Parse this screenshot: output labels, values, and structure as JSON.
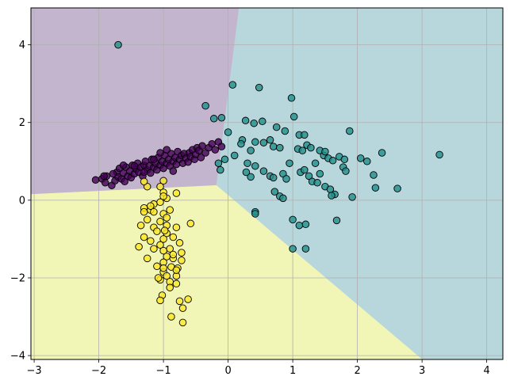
{
  "chart_data": {
    "type": "scatter",
    "title": "",
    "xlabel": "",
    "ylabel": "",
    "xlim": [
      -3.05,
      4.25
    ],
    "ylim": [
      -4.1,
      4.95
    ],
    "grid": true,
    "xticks": [
      "−3",
      "−2",
      "−1",
      "0",
      "1",
      "2",
      "3",
      "4"
    ],
    "yticks": [
      "−4",
      "−2",
      "0",
      "2",
      "4"
    ],
    "regions": [
      {
        "class": 0,
        "color": "#c4b5cf",
        "polygon": [
          [
            -3.05,
            0.15
          ],
          [
            0.2,
            0.4
          ],
          [
            -0.18,
            0.38
          ],
          [
            0.17,
            4.95
          ],
          [
            -3.05,
            4.95
          ]
        ]
      },
      {
        "class": 1,
        "color": "#b7d7dc",
        "polygon": [
          [
            -0.18,
            0.38
          ],
          [
            0.17,
            4.95
          ],
          [
            4.25,
            4.95
          ],
          [
            4.25,
            -4.1
          ],
          [
            3.0,
            -4.1
          ]
        ]
      },
      {
        "class": 2,
        "color": "#f1f5b6",
        "polygon": [
          [
            -3.05,
            0.15
          ],
          [
            -0.18,
            0.38
          ],
          [
            3.0,
            -4.1
          ],
          [
            -3.05,
            -4.1
          ]
        ]
      }
    ],
    "series": [
      {
        "class": 0,
        "color": "#440154",
        "points": [
          [
            -2.05,
            0.52
          ],
          [
            -1.95,
            0.55
          ],
          [
            -1.9,
            0.45
          ],
          [
            -1.88,
            0.62
          ],
          [
            -1.8,
            0.38
          ],
          [
            -1.75,
            0.5
          ],
          [
            -1.72,
            0.72
          ],
          [
            -1.7,
            0.6
          ],
          [
            -1.68,
            0.82
          ],
          [
            -1.65,
            0.55
          ],
          [
            -1.62,
            0.7
          ],
          [
            -1.6,
            0.48
          ],
          [
            -1.58,
            0.85
          ],
          [
            -1.55,
            0.62
          ],
          [
            -1.52,
            0.75
          ],
          [
            -1.5,
            0.58
          ],
          [
            -1.48,
            0.9
          ],
          [
            -1.45,
            0.68
          ],
          [
            -1.42,
            0.8
          ],
          [
            -1.4,
            0.95
          ],
          [
            -1.38,
            0.72
          ],
          [
            -1.35,
            0.85
          ],
          [
            -1.32,
            0.62
          ],
          [
            -1.3,
            0.9
          ],
          [
            -1.28,
            1.0
          ],
          [
            -1.25,
            0.78
          ],
          [
            -1.22,
            0.88
          ],
          [
            -1.2,
            0.7
          ],
          [
            -1.18,
            1.05
          ],
          [
            -1.15,
            0.85
          ],
          [
            -1.12,
            0.95
          ],
          [
            -1.1,
            0.78
          ],
          [
            -1.08,
            1.1
          ],
          [
            -1.05,
            0.9
          ],
          [
            -1.02,
            1.0
          ],
          [
            -1.0,
            0.82
          ],
          [
            -0.98,
            1.15
          ],
          [
            -0.95,
            0.95
          ],
          [
            -0.92,
            1.05
          ],
          [
            -0.9,
            0.88
          ],
          [
            -0.88,
            1.2
          ],
          [
            -0.85,
            1.0
          ],
          [
            -0.82,
            1.1
          ],
          [
            -0.8,
            0.92
          ],
          [
            -0.78,
            1.25
          ],
          [
            -0.75,
            1.05
          ],
          [
            -0.72,
            1.15
          ],
          [
            -0.7,
            0.95
          ],
          [
            -0.68,
            1.2
          ],
          [
            -0.65,
            1.08
          ],
          [
            -0.62,
            0.98
          ],
          [
            -0.6,
            1.22
          ],
          [
            -0.58,
            1.12
          ],
          [
            -0.55,
            1.3
          ],
          [
            -0.52,
            1.05
          ],
          [
            -0.5,
            1.18
          ],
          [
            -0.48,
            1.35
          ],
          [
            -0.45,
            1.28
          ],
          [
            -0.42,
            1.1
          ],
          [
            -0.4,
            1.4
          ],
          [
            -0.35,
            1.22
          ],
          [
            -0.3,
            1.35
          ],
          [
            -0.25,
            1.45
          ],
          [
            -0.2,
            1.3
          ],
          [
            -0.15,
            1.5
          ],
          [
            -0.1,
            1.38
          ],
          [
            -1.15,
            1.05
          ],
          [
            -1.05,
            1.22
          ],
          [
            -0.95,
            1.3
          ],
          [
            -0.85,
            0.75
          ],
          [
            -1.3,
            0.72
          ],
          [
            -1.45,
            0.88
          ],
          [
            -1.62,
            0.9
          ],
          [
            -1.78,
            0.68
          ],
          [
            -1.92,
            0.62
          ]
        ]
      },
      {
        "class": 1,
        "color": "#21908c",
        "points": [
          [
            -1.7,
            4.0
          ],
          [
            0.07,
            2.97
          ],
          [
            0.48,
            2.9
          ],
          [
            0.98,
            2.63
          ],
          [
            -0.35,
            2.43
          ],
          [
            1.02,
            2.15
          ],
          [
            -0.22,
            2.1
          ],
          [
            -0.1,
            2.12
          ],
          [
            0.27,
            2.05
          ],
          [
            0.4,
            1.98
          ],
          [
            0.53,
            2.03
          ],
          [
            0.75,
            1.88
          ],
          [
            0.88,
            1.78
          ],
          [
            1.1,
            1.68
          ],
          [
            1.18,
            1.68
          ],
          [
            1.88,
            1.78
          ],
          [
            0.0,
            1.75
          ],
          [
            0.22,
            1.55
          ],
          [
            0.42,
            1.5
          ],
          [
            0.55,
            1.48
          ],
          [
            0.65,
            1.55
          ],
          [
            0.7,
            1.38
          ],
          [
            0.8,
            1.35
          ],
          [
            1.08,
            1.32
          ],
          [
            1.15,
            1.28
          ],
          [
            1.22,
            1.42
          ],
          [
            1.28,
            1.35
          ],
          [
            1.42,
            1.28
          ],
          [
            1.48,
            1.15
          ],
          [
            1.5,
            1.25
          ],
          [
            1.55,
            1.08
          ],
          [
            1.62,
            1.02
          ],
          [
            1.72,
            1.12
          ],
          [
            1.8,
            1.05
          ],
          [
            2.05,
            1.08
          ],
          [
            2.15,
            1.0
          ],
          [
            2.38,
            1.22
          ],
          [
            3.27,
            1.17
          ],
          [
            0.2,
            1.45
          ],
          [
            0.35,
            1.28
          ],
          [
            0.1,
            1.15
          ],
          [
            -0.05,
            1.05
          ],
          [
            -0.15,
            0.95
          ],
          [
            -0.12,
            0.78
          ],
          [
            0.3,
            0.95
          ],
          [
            0.42,
            0.88
          ],
          [
            0.55,
            0.75
          ],
          [
            0.65,
            0.62
          ],
          [
            0.7,
            0.58
          ],
          [
            0.85,
            0.68
          ],
          [
            0.9,
            0.55
          ],
          [
            0.95,
            0.95
          ],
          [
            1.12,
            0.72
          ],
          [
            1.18,
            0.78
          ],
          [
            1.25,
            0.62
          ],
          [
            1.3,
            0.48
          ],
          [
            1.38,
            0.45
          ],
          [
            1.42,
            0.68
          ],
          [
            1.5,
            0.35
          ],
          [
            1.58,
            0.28
          ],
          [
            1.65,
            0.15
          ],
          [
            1.78,
            0.85
          ],
          [
            1.82,
            0.75
          ],
          [
            2.25,
            0.65
          ],
          [
            2.28,
            0.32
          ],
          [
            2.62,
            0.3
          ],
          [
            1.92,
            0.08
          ],
          [
            1.68,
            -0.52
          ],
          [
            0.42,
            -0.3
          ],
          [
            0.42,
            -0.35
          ],
          [
            1.0,
            -0.5
          ],
          [
            1.1,
            -0.65
          ],
          [
            1.2,
            -0.62
          ],
          [
            1.0,
            -1.25
          ],
          [
            1.2,
            -1.25
          ],
          [
            0.72,
            0.22
          ],
          [
            0.8,
            0.1
          ],
          [
            0.85,
            0.05
          ],
          [
            0.35,
            0.6
          ],
          [
            0.28,
            0.72
          ],
          [
            1.6,
            0.12
          ],
          [
            1.35,
            0.95
          ]
        ]
      },
      {
        "class": 2,
        "color": "#fde725",
        "points": [
          [
            -1.0,
            0.5
          ],
          [
            -0.8,
            0.18
          ],
          [
            -1.0,
            0.2
          ],
          [
            -1.05,
            0.35
          ],
          [
            -1.25,
            0.35
          ],
          [
            -1.3,
            0.48
          ],
          [
            -0.95,
            0.05
          ],
          [
            -1.15,
            -0.1
          ],
          [
            -1.05,
            -0.05
          ],
          [
            -1.3,
            -0.2
          ],
          [
            -1.2,
            -0.25
          ],
          [
            -1.0,
            -0.35
          ],
          [
            -0.9,
            -0.25
          ],
          [
            -1.25,
            -0.5
          ],
          [
            -1.35,
            -0.65
          ],
          [
            -1.15,
            -0.7
          ],
          [
            -1.05,
            -0.55
          ],
          [
            -0.95,
            -0.65
          ],
          [
            -0.8,
            -0.7
          ],
          [
            -0.58,
            -0.6
          ],
          [
            -1.3,
            -0.95
          ],
          [
            -1.1,
            -0.8
          ],
          [
            -0.95,
            -0.85
          ],
          [
            -1.2,
            -1.05
          ],
          [
            -1.0,
            -1.0
          ],
          [
            -0.85,
            -0.95
          ],
          [
            -0.75,
            -1.1
          ],
          [
            -1.05,
            -1.15
          ],
          [
            -0.9,
            -1.25
          ],
          [
            -0.72,
            -1.35
          ],
          [
            -1.38,
            -1.2
          ],
          [
            -1.25,
            -1.5
          ],
          [
            -1.0,
            -1.3
          ],
          [
            -0.95,
            -1.45
          ],
          [
            -0.85,
            -1.5
          ],
          [
            -0.72,
            -1.55
          ],
          [
            -1.0,
            -1.6
          ],
          [
            -1.1,
            -1.7
          ],
          [
            -0.88,
            -1.72
          ],
          [
            -0.78,
            -1.75
          ],
          [
            -1.0,
            -1.85
          ],
          [
            -0.95,
            -1.95
          ],
          [
            -0.8,
            -1.95
          ],
          [
            -1.05,
            -2.05
          ],
          [
            -0.9,
            -2.1
          ],
          [
            -0.8,
            -2.15
          ],
          [
            -1.02,
            -2.45
          ],
          [
            -1.05,
            -2.58
          ],
          [
            -0.75,
            -2.6
          ],
          [
            -0.62,
            -2.55
          ],
          [
            -0.7,
            -2.78
          ],
          [
            -0.88,
            -3.0
          ],
          [
            -0.7,
            -3.15
          ],
          [
            -1.15,
            -0.3
          ],
          [
            -1.3,
            -0.3
          ],
          [
            -0.98,
            -0.78
          ],
          [
            -1.15,
            -1.25
          ],
          [
            -0.85,
            -1.4
          ],
          [
            -1.0,
            -1.75
          ],
          [
            -0.8,
            -1.8
          ],
          [
            -1.08,
            -2.0
          ],
          [
            -0.9,
            -2.25
          ],
          [
            -1.2,
            -0.15
          ],
          [
            -1.0,
            0.1
          ],
          [
            -0.95,
            -0.45
          ]
        ]
      }
    ]
  }
}
